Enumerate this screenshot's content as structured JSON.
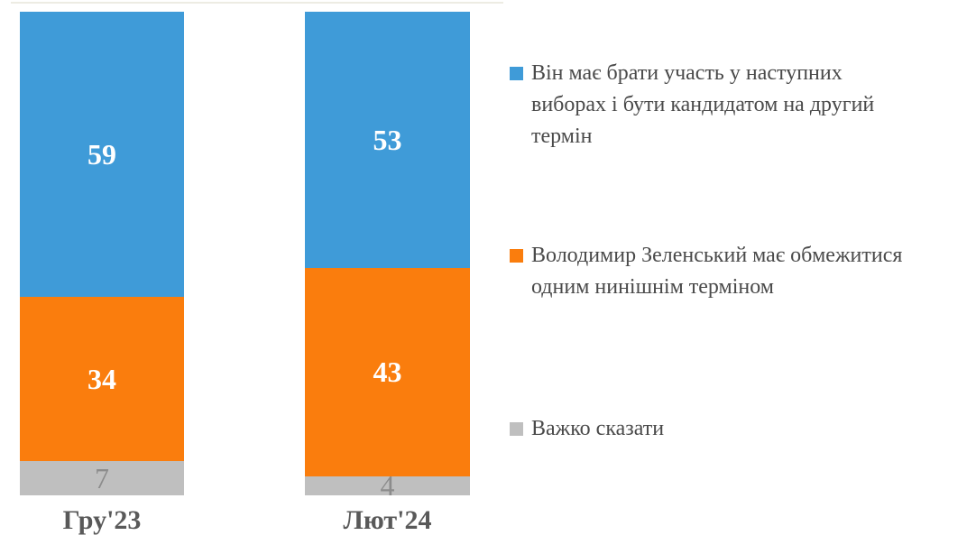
{
  "chart_data": {
    "type": "bar",
    "stacked": true,
    "orientation": "vertical",
    "categories": [
      "Гру'23",
      "Лют'24"
    ],
    "series": [
      {
        "name": "Він має брати участь у наступних виборах і бути кандидатом на другий термін",
        "color": "#3F9BD8",
        "label_color": "#FFFFFF",
        "label_weight": "bold",
        "values": [
          59,
          53
        ]
      },
      {
        "name": "Володимир Зеленський має обмежитися одним нинішнім терміном",
        "color": "#FA7D0D",
        "label_color": "#FFFFFF",
        "label_weight": "bold",
        "values": [
          34,
          43
        ]
      },
      {
        "name": "Важко сказати",
        "color": "#BFBFBF",
        "label_color": "#8C8C8C",
        "label_weight": "normal",
        "values": [
          7,
          4
        ]
      }
    ],
    "ylim": [
      0,
      100
    ],
    "grid": false,
    "top_gridline": true,
    "legend_position": "right",
    "value_labels": "inside-center"
  },
  "x_axis": {
    "label_color": "#595959",
    "labels": [
      "Гру'23",
      "Лют'24"
    ]
  },
  "legend": {
    "text_color": "#4A4A4A",
    "items": [
      {
        "label": "Він має брати участь у наступних\nвиборах і бути кандидатом на другий\nтермін",
        "color": "#3F9BD8"
      },
      {
        "label": "Володимир Зеленський має обмежитися\nодним нинішнім терміном",
        "color": "#FA7D0D"
      },
      {
        "label": "Важко сказати",
        "color": "#BFBFBF"
      }
    ]
  },
  "colors": {
    "background": "#FFFFFF",
    "top_gridline": "#EDECE3"
  }
}
